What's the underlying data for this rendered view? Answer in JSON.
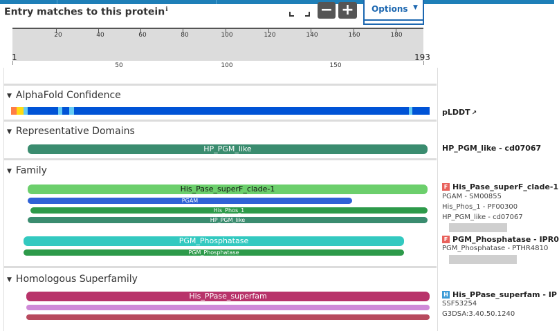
{
  "header": {
    "title": "Entry matches to this protein",
    "info_glyph": "ℹ",
    "options_label": "Options",
    "zoom_out_glyph": "−",
    "zoom_in_glyph": "+"
  },
  "ruler": {
    "start": "1",
    "end": "193",
    "ticks": [
      "20",
      "40",
      "60",
      "80",
      "100",
      "120",
      "140",
      "160",
      "180"
    ],
    "main_ticks": [
      "50",
      "100",
      "150"
    ]
  },
  "sections": {
    "alphafold": {
      "title": "AlphaFold Confidence",
      "label": "pLDDT",
      "colors": {
        "very_high": "#0053d6",
        "confident": "#65cbf3",
        "low": "#ffdb13",
        "very_low": "#ff7d45"
      }
    },
    "domains": {
      "title": "Representative Domains",
      "bar_label": "HP_PGM_like",
      "label": "HP_PGM_like - cd07067"
    },
    "family": {
      "title": "Family",
      "group1": {
        "bars": [
          "His_Pase_superF_clade-1",
          "PGAM",
          "His_Phos_1",
          "HP_PGM_like"
        ],
        "badge": "F",
        "label": "His_Pase_superF_clade-1",
        "subs": [
          "PGAM - SM00855",
          "His_Phos_1 - PF00300",
          "HP_PGM_like - cd07067"
        ]
      },
      "group2": {
        "bars": [
          "PGM_Phosphatase",
          "PGM_Phosphatase"
        ],
        "badge": "F",
        "label": "PGM_Phosphatase - IPR0",
        "subs": [
          "PGM_Phosphatase - PTHR4810"
        ]
      }
    },
    "superfamily": {
      "title": "Homologous Superfamily",
      "bars": [
        "His_PPase_superfam"
      ],
      "badge": "H",
      "label": "His_PPase_superfam - IP",
      "subs": [
        "SSF53254",
        "G3DSA:3.40.50.1240"
      ]
    }
  }
}
